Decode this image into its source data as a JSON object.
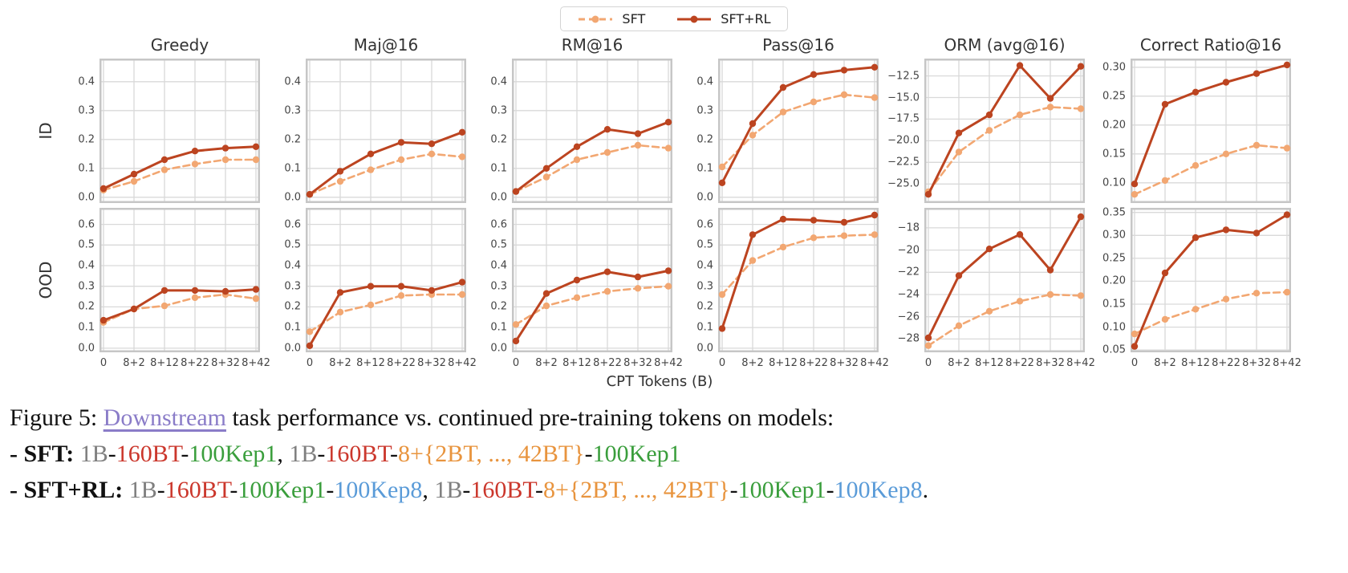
{
  "legend": {
    "items": [
      {
        "label": "SFT",
        "style": "dashed"
      },
      {
        "label": "SFT+RL",
        "style": "solid"
      }
    ]
  },
  "colors": {
    "sft": "#f2a772",
    "sft_rl": "#bc4420",
    "link": "#8a7cc8",
    "caption": {
      "black": "#111111",
      "gray": "#7f7f7f",
      "red": "#cb372c",
      "green": "#3a9e3c",
      "orange": "#e8943e",
      "blue": "#5a9bd8"
    }
  },
  "axis": {
    "x_label": "CPT Tokens (B)",
    "x_ticks": [
      "0",
      "8+2",
      "8+12",
      "8+22",
      "8+32",
      "8+42"
    ]
  },
  "row_labels": [
    "ID",
    "OOD"
  ],
  "col_titles": [
    "Greedy",
    "Maj@16",
    "RM@16",
    "Pass@16",
    "ORM (avg@16)",
    "Correct Ratio@16"
  ],
  "chart_data": [
    {
      "type": "line",
      "title": "Greedy",
      "row": "ID",
      "x": [
        "0",
        "8+2",
        "8+12",
        "8+22",
        "8+32",
        "8+42"
      ],
      "ylim": [
        -0.02,
        0.48
      ],
      "yticks": [
        0.0,
        0.1,
        0.2,
        0.3,
        0.4
      ],
      "ytick_labels": [
        "0.0",
        "0.1",
        "0.2",
        "0.3",
        "0.4"
      ],
      "series": [
        {
          "name": "SFT",
          "values": [
            0.025,
            0.055,
            0.095,
            0.115,
            0.13,
            0.13
          ]
        },
        {
          "name": "SFT+RL",
          "values": [
            0.03,
            0.08,
            0.13,
            0.16,
            0.17,
            0.175
          ]
        }
      ]
    },
    {
      "type": "line",
      "title": "Maj@16",
      "row": "ID",
      "x": [
        "0",
        "8+2",
        "8+12",
        "8+22",
        "8+32",
        "8+42"
      ],
      "ylim": [
        -0.02,
        0.48
      ],
      "yticks": [
        0.0,
        0.1,
        0.2,
        0.3,
        0.4
      ],
      "ytick_labels": [
        "0.0",
        "0.1",
        "0.2",
        "0.3",
        "0.4"
      ],
      "series": [
        {
          "name": "SFT",
          "values": [
            0.01,
            0.055,
            0.095,
            0.13,
            0.15,
            0.14
          ]
        },
        {
          "name": "SFT+RL",
          "values": [
            0.01,
            0.09,
            0.15,
            0.19,
            0.185,
            0.225
          ]
        }
      ]
    },
    {
      "type": "line",
      "title": "RM@16",
      "row": "ID",
      "x": [
        "0",
        "8+2",
        "8+12",
        "8+22",
        "8+32",
        "8+42"
      ],
      "ylim": [
        -0.02,
        0.48
      ],
      "yticks": [
        0.0,
        0.1,
        0.2,
        0.3,
        0.4
      ],
      "ytick_labels": [
        "0.0",
        "0.1",
        "0.2",
        "0.3",
        "0.4"
      ],
      "series": [
        {
          "name": "SFT",
          "values": [
            0.02,
            0.07,
            0.13,
            0.155,
            0.18,
            0.17
          ]
        },
        {
          "name": "SFT+RL",
          "values": [
            0.02,
            0.1,
            0.175,
            0.235,
            0.22,
            0.26
          ]
        }
      ]
    },
    {
      "type": "line",
      "title": "Pass@16",
      "row": "ID",
      "x": [
        "0",
        "8+2",
        "8+12",
        "8+22",
        "8+32",
        "8+42"
      ],
      "ylim": [
        -0.02,
        0.48
      ],
      "yticks": [
        0.0,
        0.1,
        0.2,
        0.3,
        0.4
      ],
      "ytick_labels": [
        "0.0",
        "0.1",
        "0.2",
        "0.3",
        "0.4"
      ],
      "series": [
        {
          "name": "SFT",
          "values": [
            0.105,
            0.215,
            0.295,
            0.33,
            0.355,
            0.345
          ]
        },
        {
          "name": "SFT+RL",
          "values": [
            0.05,
            0.255,
            0.38,
            0.425,
            0.44,
            0.45
          ]
        }
      ]
    },
    {
      "type": "line",
      "title": "ORM (avg@16)",
      "row": "ID",
      "x": [
        "0",
        "8+2",
        "8+12",
        "8+22",
        "8+32",
        "8+42"
      ],
      "ylim": [
        -27.2,
        -10.5
      ],
      "yticks": [
        -12.5,
        -15.0,
        -17.5,
        -20.0,
        -22.5,
        -25.0
      ],
      "ytick_labels": [
        "−12.5",
        "−15.0",
        "−17.5",
        "−20.0",
        "−22.5",
        "−25.0"
      ],
      "series": [
        {
          "name": "SFT",
          "values": [
            -25.9,
            -21.3,
            -18.8,
            -17.0,
            -16.1,
            -16.3
          ]
        },
        {
          "name": "SFT+RL",
          "values": [
            -26.2,
            -19.1,
            -17.0,
            -11.3,
            -15.1,
            -11.4
          ]
        }
      ]
    },
    {
      "type": "line",
      "title": "Correct Ratio@16",
      "row": "ID",
      "x": [
        "0",
        "8+2",
        "8+12",
        "8+22",
        "8+32",
        "8+42"
      ],
      "ylim": [
        0.065,
        0.315
      ],
      "yticks": [
        0.3,
        0.25,
        0.2,
        0.15,
        0.1
      ],
      "ytick_labels": [
        "0.30",
        "0.25",
        "0.20",
        "0.15",
        "0.10"
      ],
      "series": [
        {
          "name": "SFT",
          "values": [
            0.08,
            0.104,
            0.13,
            0.15,
            0.165,
            0.16
          ]
        },
        {
          "name": "SFT+RL",
          "values": [
            0.098,
            0.236,
            0.257,
            0.274,
            0.289,
            0.304
          ]
        }
      ]
    },
    {
      "type": "line",
      "title": "Greedy",
      "row": "OOD",
      "x": [
        "0",
        "8+2",
        "8+12",
        "8+22",
        "8+32",
        "8+42"
      ],
      "ylim": [
        -0.02,
        0.68
      ],
      "yticks": [
        0.0,
        0.1,
        0.2,
        0.3,
        0.4,
        0.5,
        0.6
      ],
      "ytick_labels": [
        "0.0",
        "0.1",
        "0.2",
        "0.3",
        "0.4",
        "0.5",
        "0.6"
      ],
      "series": [
        {
          "name": "SFT",
          "values": [
            0.125,
            0.19,
            0.205,
            0.245,
            0.26,
            0.24
          ]
        },
        {
          "name": "SFT+RL",
          "values": [
            0.135,
            0.19,
            0.28,
            0.28,
            0.275,
            0.285
          ]
        }
      ]
    },
    {
      "type": "line",
      "title": "Maj@16",
      "row": "OOD",
      "x": [
        "0",
        "8+2",
        "8+12",
        "8+22",
        "8+32",
        "8+42"
      ],
      "ylim": [
        -0.02,
        0.68
      ],
      "yticks": [
        0.0,
        0.1,
        0.2,
        0.3,
        0.4,
        0.5,
        0.6
      ],
      "ytick_labels": [
        "0.0",
        "0.1",
        "0.2",
        "0.3",
        "0.4",
        "0.5",
        "0.6"
      ],
      "series": [
        {
          "name": "SFT",
          "values": [
            0.08,
            0.175,
            0.21,
            0.255,
            0.26,
            0.26
          ]
        },
        {
          "name": "SFT+RL",
          "values": [
            0.012,
            0.27,
            0.3,
            0.3,
            0.28,
            0.32
          ]
        }
      ]
    },
    {
      "type": "line",
      "title": "RM@16",
      "row": "OOD",
      "x": [
        "0",
        "8+2",
        "8+12",
        "8+22",
        "8+32",
        "8+42"
      ],
      "ylim": [
        -0.02,
        0.68
      ],
      "yticks": [
        0.0,
        0.1,
        0.2,
        0.3,
        0.4,
        0.5,
        0.6
      ],
      "ytick_labels": [
        "0.0",
        "0.1",
        "0.2",
        "0.3",
        "0.4",
        "0.5",
        "0.6"
      ],
      "series": [
        {
          "name": "SFT",
          "values": [
            0.115,
            0.205,
            0.245,
            0.275,
            0.29,
            0.3
          ]
        },
        {
          "name": "SFT+RL",
          "values": [
            0.035,
            0.265,
            0.33,
            0.37,
            0.345,
            0.375
          ]
        }
      ]
    },
    {
      "type": "line",
      "title": "Pass@16",
      "row": "OOD",
      "x": [
        "0",
        "8+2",
        "8+12",
        "8+22",
        "8+32",
        "8+42"
      ],
      "ylim": [
        -0.02,
        0.68
      ],
      "yticks": [
        0.0,
        0.1,
        0.2,
        0.3,
        0.4,
        0.5,
        0.6
      ],
      "ytick_labels": [
        "0.0",
        "0.1",
        "0.2",
        "0.3",
        "0.4",
        "0.5",
        "0.6"
      ],
      "series": [
        {
          "name": "SFT",
          "values": [
            0.26,
            0.425,
            0.49,
            0.535,
            0.545,
            0.55
          ]
        },
        {
          "name": "SFT+RL",
          "values": [
            0.095,
            0.55,
            0.625,
            0.62,
            0.61,
            0.645
          ]
        }
      ]
    },
    {
      "type": "line",
      "title": "ORM (avg@16)",
      "row": "OOD",
      "x": [
        "0",
        "8+2",
        "8+12",
        "8+22",
        "8+32",
        "8+42"
      ],
      "ylim": [
        -29.2,
        -16.2
      ],
      "yticks": [
        -18,
        -20,
        -22,
        -24,
        -26,
        -28
      ],
      "ytick_labels": [
        "−18",
        "−20",
        "−22",
        "−24",
        "−26",
        "−28"
      ],
      "series": [
        {
          "name": "SFT",
          "values": [
            -28.6,
            -26.8,
            -25.5,
            -24.6,
            -24.0,
            -24.1
          ]
        },
        {
          "name": "SFT+RL",
          "values": [
            -27.9,
            -22.3,
            -19.9,
            -18.6,
            -21.8,
            -17.0
          ]
        }
      ]
    },
    {
      "type": "line",
      "title": "Correct Ratio@16",
      "row": "OOD",
      "x": [
        "0",
        "8+2",
        "8+12",
        "8+22",
        "8+32",
        "8+42"
      ],
      "ylim": [
        0.045,
        0.36
      ],
      "yticks": [
        0.35,
        0.3,
        0.25,
        0.2,
        0.15,
        0.1,
        0.05
      ],
      "ytick_labels": [
        "0.35",
        "0.30",
        "0.25",
        "0.20",
        "0.15",
        "0.10",
        "0.05"
      ],
      "series": [
        {
          "name": "SFT",
          "values": [
            0.085,
            0.117,
            0.139,
            0.161,
            0.174,
            0.176
          ]
        },
        {
          "name": "SFT+RL",
          "values": [
            0.058,
            0.218,
            0.295,
            0.312,
            0.305,
            0.345
          ]
        }
      ]
    }
  ],
  "caption": {
    "line1_prefix": "Figure 5: ",
    "link_text": "Downstream",
    "line1_rest": " task performance vs. continued pre-training tokens on models:",
    "line2": [
      {
        "text": "- SFT: ",
        "color": "black",
        "bold": true
      },
      {
        "text": "1B",
        "color": "gray"
      },
      {
        "text": "-",
        "color": "black"
      },
      {
        "text": "160BT",
        "color": "red"
      },
      {
        "text": "-",
        "color": "black"
      },
      {
        "text": "100Kep1",
        "color": "green"
      },
      {
        "text": ", ",
        "color": "black"
      },
      {
        "text": "1B",
        "color": "gray"
      },
      {
        "text": "-",
        "color": "black"
      },
      {
        "text": "160BT",
        "color": "red"
      },
      {
        "text": "-",
        "color": "black"
      },
      {
        "text": "8+{2BT, ..., 42BT}",
        "color": "orange"
      },
      {
        "text": "-",
        "color": "black"
      },
      {
        "text": "100Kep1",
        "color": "green"
      }
    ],
    "line3": [
      {
        "text": "- SFT+RL: ",
        "color": "black",
        "bold": true
      },
      {
        "text": "1B",
        "color": "gray"
      },
      {
        "text": "-",
        "color": "black"
      },
      {
        "text": "160BT",
        "color": "red"
      },
      {
        "text": "-",
        "color": "black"
      },
      {
        "text": "100Kep1",
        "color": "green"
      },
      {
        "text": "-",
        "color": "black"
      },
      {
        "text": "100Kep8",
        "color": "blue"
      },
      {
        "text": ", ",
        "color": "black"
      },
      {
        "text": "1B",
        "color": "gray"
      },
      {
        "text": "-",
        "color": "black"
      },
      {
        "text": "160BT",
        "color": "red"
      },
      {
        "text": "-",
        "color": "black"
      },
      {
        "text": "8+{2BT, ..., 42BT}",
        "color": "orange"
      },
      {
        "text": "-",
        "color": "black"
      },
      {
        "text": "100Kep1",
        "color": "green"
      },
      {
        "text": "-",
        "color": "black"
      },
      {
        "text": "100Kep8",
        "color": "blue"
      },
      {
        "text": ".",
        "color": "black"
      }
    ]
  }
}
